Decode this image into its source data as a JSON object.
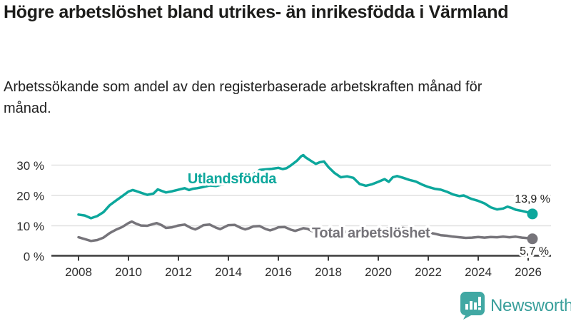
{
  "title": "Högre arbetslöshet bland utrikes- än inrikesfödda i Värmland",
  "subtitle": "Arbetssökande som andel av den registerbaserade arbetskraften månad för månad.",
  "branding": {
    "name": "Newsworthy"
  },
  "colors": {
    "teal": "#0ca79c",
    "gray": "#76747a",
    "grid": "#e1e1e1",
    "axis": "#3c3c3c",
    "text_dark": "#1d1d1b",
    "logo_teal": "#41a8a3"
  },
  "chart_data": {
    "type": "line",
    "grid": true,
    "legend": "inline-labels",
    "x_axis": {
      "ticks": [
        "2008",
        "2010",
        "2012",
        "2014",
        "2016",
        "2018",
        "2020",
        "2022",
        "2024",
        "2026"
      ],
      "tick_values": [
        2008,
        2010,
        2012,
        2014,
        2016,
        2018,
        2020,
        2022,
        2024,
        2026
      ],
      "range": [
        2007.3,
        2026.9
      ]
    },
    "y_axis": {
      "ticks": [
        "0 %",
        "10 %",
        "20 %",
        "30 %"
      ],
      "tick_values": [
        0,
        10,
        20,
        30
      ],
      "range": [
        0,
        36
      ]
    },
    "series": [
      {
        "name": "Utlandsfödda",
        "color": "#0ca79c",
        "end_label": "13,9 %",
        "end_value": 13.9,
        "points": [
          [
            2008.0,
            13.7
          ],
          [
            2008.25,
            13.4
          ],
          [
            2008.5,
            12.5
          ],
          [
            2008.75,
            13.2
          ],
          [
            2009.0,
            14.5
          ],
          [
            2009.25,
            16.8
          ],
          [
            2009.5,
            18.3
          ],
          [
            2009.75,
            19.8
          ],
          [
            2010.0,
            21.3
          ],
          [
            2010.17,
            21.8
          ],
          [
            2010.33,
            21.4
          ],
          [
            2010.5,
            20.9
          ],
          [
            2010.75,
            20.2
          ],
          [
            2011.0,
            20.6
          ],
          [
            2011.17,
            22.0
          ],
          [
            2011.33,
            21.5
          ],
          [
            2011.5,
            21.0
          ],
          [
            2011.75,
            21.4
          ],
          [
            2012.0,
            21.9
          ],
          [
            2012.25,
            22.4
          ],
          [
            2012.42,
            21.8
          ],
          [
            2012.58,
            22.2
          ],
          [
            2012.75,
            22.4
          ],
          [
            2013.0,
            22.8
          ],
          [
            2013.25,
            23.3
          ],
          [
            2013.5,
            23.1
          ],
          [
            2013.75,
            23.6
          ],
          [
            2014.0,
            24.0
          ],
          [
            2014.25,
            24.4
          ],
          [
            2014.5,
            24.9
          ],
          [
            2014.75,
            25.8
          ],
          [
            2015.0,
            27.0
          ],
          [
            2015.25,
            28.4
          ],
          [
            2015.5,
            28.6
          ],
          [
            2015.75,
            28.8
          ],
          [
            2016.0,
            29.1
          ],
          [
            2016.17,
            28.7
          ],
          [
            2016.33,
            29.0
          ],
          [
            2016.5,
            29.9
          ],
          [
            2016.75,
            31.5
          ],
          [
            2016.92,
            33.0
          ],
          [
            2017.0,
            33.3
          ],
          [
            2017.08,
            32.6
          ],
          [
            2017.25,
            31.7
          ],
          [
            2017.5,
            30.4
          ],
          [
            2017.67,
            31.0
          ],
          [
            2017.83,
            31.2
          ],
          [
            2018.0,
            29.4
          ],
          [
            2018.25,
            27.4
          ],
          [
            2018.5,
            26.0
          ],
          [
            2018.75,
            26.3
          ],
          [
            2019.0,
            25.8
          ],
          [
            2019.25,
            23.8
          ],
          [
            2019.5,
            23.2
          ],
          [
            2019.75,
            23.7
          ],
          [
            2020.0,
            24.5
          ],
          [
            2020.25,
            25.4
          ],
          [
            2020.42,
            24.5
          ],
          [
            2020.58,
            26.0
          ],
          [
            2020.75,
            26.4
          ],
          [
            2021.0,
            25.8
          ],
          [
            2021.25,
            25.1
          ],
          [
            2021.5,
            24.6
          ],
          [
            2021.75,
            23.6
          ],
          [
            2022.0,
            22.8
          ],
          [
            2022.25,
            22.2
          ],
          [
            2022.5,
            21.9
          ],
          [
            2022.75,
            21.2
          ],
          [
            2023.0,
            20.3
          ],
          [
            2023.25,
            19.8
          ],
          [
            2023.42,
            20.0
          ],
          [
            2023.58,
            19.4
          ],
          [
            2023.75,
            18.8
          ],
          [
            2024.0,
            18.2
          ],
          [
            2024.25,
            17.4
          ],
          [
            2024.5,
            16.1
          ],
          [
            2024.75,
            15.4
          ],
          [
            2025.0,
            15.7
          ],
          [
            2025.17,
            16.3
          ],
          [
            2025.33,
            15.9
          ],
          [
            2025.5,
            15.3
          ],
          [
            2025.75,
            14.9
          ],
          [
            2026.0,
            14.4
          ],
          [
            2026.17,
            13.9
          ]
        ]
      },
      {
        "name": "Total arbetslöshet",
        "color": "#76747a",
        "end_label": "5,7 %",
        "end_value": 5.7,
        "points": [
          [
            2008.0,
            6.2
          ],
          [
            2008.25,
            5.6
          ],
          [
            2008.5,
            5.0
          ],
          [
            2008.75,
            5.3
          ],
          [
            2009.0,
            6.1
          ],
          [
            2009.25,
            7.6
          ],
          [
            2009.5,
            8.7
          ],
          [
            2009.75,
            9.6
          ],
          [
            2010.0,
            10.9
          ],
          [
            2010.13,
            11.4
          ],
          [
            2010.33,
            10.6
          ],
          [
            2010.5,
            10.1
          ],
          [
            2010.75,
            10.0
          ],
          [
            2011.0,
            10.6
          ],
          [
            2011.13,
            10.9
          ],
          [
            2011.33,
            10.2
          ],
          [
            2011.5,
            9.3
          ],
          [
            2011.75,
            9.5
          ],
          [
            2012.0,
            10.1
          ],
          [
            2012.25,
            10.4
          ],
          [
            2012.5,
            9.3
          ],
          [
            2012.67,
            8.8
          ],
          [
            2012.83,
            9.4
          ],
          [
            2013.0,
            10.2
          ],
          [
            2013.25,
            10.4
          ],
          [
            2013.5,
            9.4
          ],
          [
            2013.67,
            8.9
          ],
          [
            2013.83,
            9.5
          ],
          [
            2014.0,
            10.2
          ],
          [
            2014.25,
            10.3
          ],
          [
            2014.5,
            9.3
          ],
          [
            2014.67,
            8.8
          ],
          [
            2014.83,
            9.2
          ],
          [
            2015.0,
            9.8
          ],
          [
            2015.25,
            9.9
          ],
          [
            2015.5,
            8.9
          ],
          [
            2015.67,
            8.5
          ],
          [
            2015.83,
            8.9
          ],
          [
            2016.0,
            9.5
          ],
          [
            2016.25,
            9.6
          ],
          [
            2016.5,
            8.7
          ],
          [
            2016.67,
            8.3
          ],
          [
            2016.83,
            8.7
          ],
          [
            2017.0,
            9.2
          ],
          [
            2017.17,
            9.0
          ],
          [
            2017.33,
            8.3
          ],
          [
            2017.5,
            8.1
          ],
          [
            2017.75,
            8.4
          ],
          [
            2018.0,
            8.8
          ],
          [
            2018.25,
            8.6
          ],
          [
            2018.5,
            7.9
          ],
          [
            2018.75,
            8.0
          ],
          [
            2019.0,
            8.3
          ],
          [
            2019.25,
            8.0
          ],
          [
            2019.5,
            7.6
          ],
          [
            2019.75,
            7.8
          ],
          [
            2020.0,
            8.2
          ],
          [
            2020.25,
            9.0
          ],
          [
            2020.5,
            9.4
          ],
          [
            2020.75,
            9.2
          ],
          [
            2021.0,
            9.3
          ],
          [
            2021.25,
            8.9
          ],
          [
            2021.5,
            8.3
          ],
          [
            2021.75,
            7.9
          ],
          [
            2022.0,
            7.8
          ],
          [
            2022.25,
            7.4
          ],
          [
            2022.5,
            6.9
          ],
          [
            2022.75,
            6.7
          ],
          [
            2023.0,
            6.4
          ],
          [
            2023.25,
            6.2
          ],
          [
            2023.5,
            6.0
          ],
          [
            2023.75,
            6.1
          ],
          [
            2024.0,
            6.3
          ],
          [
            2024.25,
            6.1
          ],
          [
            2024.5,
            6.3
          ],
          [
            2024.75,
            6.2
          ],
          [
            2025.0,
            6.4
          ],
          [
            2025.25,
            6.2
          ],
          [
            2025.5,
            6.4
          ],
          [
            2025.75,
            6.1
          ],
          [
            2026.0,
            5.9
          ],
          [
            2026.17,
            5.7
          ]
        ]
      }
    ]
  }
}
